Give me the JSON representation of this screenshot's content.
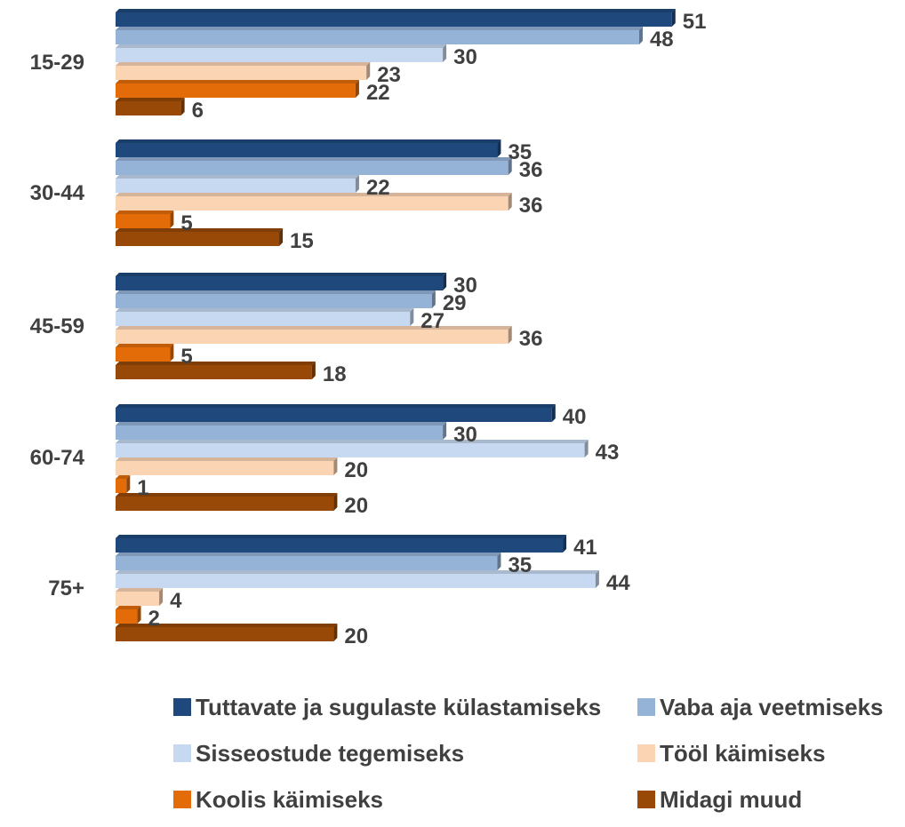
{
  "chart_data": {
    "type": "bar",
    "orientation": "horizontal",
    "categories": [
      "15-29",
      "30-44",
      "45-59",
      "60-74",
      "75+"
    ],
    "series": [
      {
        "name": "Tuttavate ja sugulaste külastamiseks",
        "color": "#1F497D",
        "values": [
          51,
          35,
          30,
          40,
          41
        ]
      },
      {
        "name": "Vaba aja veetmiseks",
        "color": "#95B3D7",
        "values": [
          48,
          36,
          29,
          30,
          35
        ]
      },
      {
        "name": "Sisseostude tegemiseks",
        "color": "#C6D9F1",
        "values": [
          30,
          22,
          27,
          43,
          44
        ]
      },
      {
        "name": "Tööl käimiseks",
        "color": "#FBD4B4",
        "values": [
          23,
          36,
          36,
          20,
          4
        ]
      },
      {
        "name": "Koolis käimiseks",
        "color": "#E36C09",
        "values": [
          22,
          5,
          5,
          1,
          2
        ]
      },
      {
        "name": "Midagi muud",
        "color": "#984807",
        "values": [
          6,
          15,
          18,
          20,
          20
        ]
      }
    ],
    "xlim": [
      0,
      55
    ],
    "grid": false,
    "legend": "bottom",
    "data_labels": true
  }
}
